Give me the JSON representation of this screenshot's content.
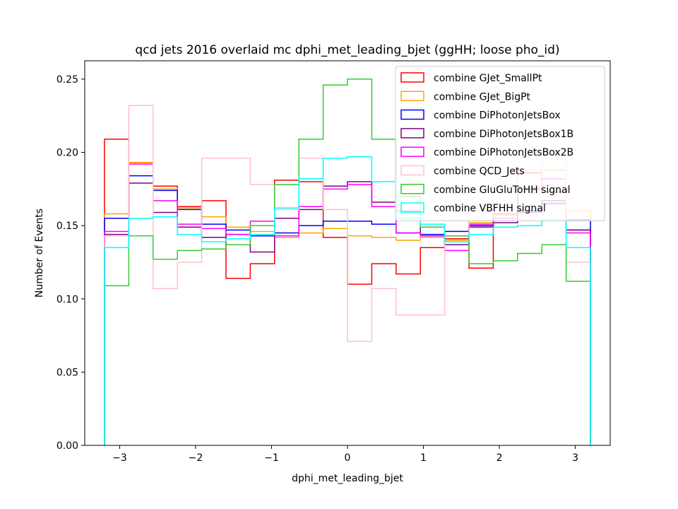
{
  "chart_data": {
    "type": "step-histogram",
    "title": "qcd jets 2016 overlaid mc dphi_met_leading_bjet (ggHH; loose pho_id)",
    "xlabel": "dphi_met_leading_bjet",
    "ylabel": "Number of Events",
    "xlim": [
      -3.46,
      3.46
    ],
    "ylim": [
      0,
      0.2625
    ],
    "xticks": [
      -3,
      -2,
      -1,
      0,
      1,
      2,
      3
    ],
    "xtick_labels": [
      "−3",
      "−2",
      "−1",
      "0",
      "1",
      "2",
      "3"
    ],
    "yticks": [
      0.0,
      0.05,
      0.1,
      0.15,
      0.2,
      0.25
    ],
    "ytick_labels": [
      "0.00",
      "0.05",
      "0.10",
      "0.15",
      "0.20",
      "0.25"
    ],
    "bin_range": [
      -3.2,
      3.2
    ],
    "n_bins": 20,
    "legend_position": "upper right",
    "series": [
      {
        "name": "combine GJet_SmallPt",
        "color": "#ff0000",
        "values": [
          0.209,
          0.193,
          0.177,
          0.163,
          0.167,
          0.114,
          0.124,
          0.181,
          0.18,
          0.142,
          0.11,
          0.124,
          0.117,
          0.135,
          0.141,
          0.121,
          0.158,
          0.186,
          0.173,
          0.147
        ]
      },
      {
        "name": "combine GJet_BigPt",
        "color": "#ffa500",
        "values": [
          0.158,
          0.193,
          0.175,
          0.162,
          0.156,
          0.149,
          0.146,
          0.142,
          0.145,
          0.148,
          0.143,
          0.142,
          0.14,
          0.142,
          0.14,
          0.152,
          0.157,
          0.176,
          0.188,
          0.16
        ]
      },
      {
        "name": "combine DiPhotonJetsBox",
        "color": "#0000ff",
        "values": [
          0.155,
          0.184,
          0.174,
          0.161,
          0.151,
          0.147,
          0.143,
          0.145,
          0.15,
          0.153,
          0.153,
          0.151,
          0.145,
          0.144,
          0.146,
          0.15,
          0.155,
          0.16,
          0.165,
          0.154
        ]
      },
      {
        "name": "combine DiPhotonJetsBox1B",
        "color": "#800080",
        "values": [
          0.144,
          0.179,
          0.159,
          0.149,
          0.142,
          0.144,
          0.132,
          0.155,
          0.161,
          0.177,
          0.18,
          0.166,
          0.16,
          0.143,
          0.137,
          0.149,
          0.152,
          0.159,
          0.167,
          0.147
        ]
      },
      {
        "name": "combine DiPhotonJetsBox2B",
        "color": "#ff00ff",
        "values": [
          0.146,
          0.192,
          0.167,
          0.151,
          0.148,
          0.144,
          0.153,
          0.143,
          0.163,
          0.175,
          0.178,
          0.163,
          0.145,
          0.143,
          0.133,
          0.151,
          0.155,
          0.175,
          0.182,
          0.145
        ]
      },
      {
        "name": "combine QCD_Jets",
        "color": "#ffc0cb",
        "values": [
          0.143,
          0.232,
          0.107,
          0.125,
          0.196,
          0.196,
          0.178,
          0.161,
          0.196,
          0.161,
          0.071,
          0.107,
          0.089,
          0.089,
          0.143,
          0.161,
          0.178,
          0.188,
          0.196,
          0.125
        ]
      },
      {
        "name": "combine GluGluToHH signal",
        "color": "#33cc33",
        "values": [
          0.109,
          0.143,
          0.127,
          0.133,
          0.134,
          0.137,
          0.15,
          0.178,
          0.209,
          0.246,
          0.25,
          0.209,
          0.17,
          0.149,
          0.143,
          0.124,
          0.126,
          0.131,
          0.137,
          0.112
        ]
      },
      {
        "name": "combine VBFHH signal",
        "color": "#00ffff",
        "values": [
          0.135,
          0.155,
          0.156,
          0.144,
          0.139,
          0.141,
          0.144,
          0.162,
          0.182,
          0.196,
          0.197,
          0.18,
          0.155,
          0.151,
          0.139,
          0.144,
          0.149,
          0.15,
          0.154,
          0.135
        ]
      }
    ]
  }
}
